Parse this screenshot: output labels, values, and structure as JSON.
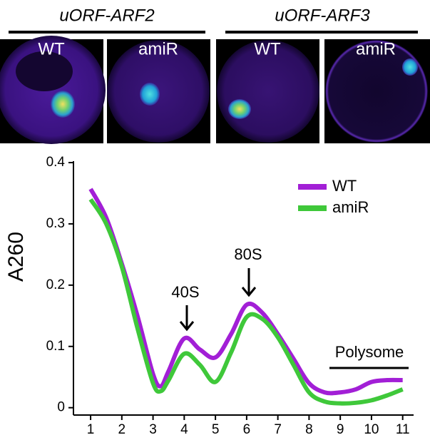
{
  "panels": {
    "groups": [
      "uORF-ARF2",
      "uORF-ARF3"
    ],
    "labels": [
      "WT",
      "amiR",
      "WT",
      "amiR"
    ]
  },
  "chart_data": {
    "type": "line",
    "ylabel": "A260",
    "x": [
      1,
      1.5,
      2,
      2.5,
      3,
      3.25,
      3.5,
      4,
      4.5,
      5,
      5.5,
      6,
      6.5,
      7,
      7.5,
      8,
      8.5,
      9,
      9.5,
      10,
      10.5,
      11
    ],
    "series": [
      {
        "name": "WT",
        "color": "#a21fd6",
        "values": [
          0.357,
          0.31,
          0.235,
          0.15,
          0.055,
          0.035,
          0.06,
          0.113,
          0.095,
          0.082,
          0.12,
          0.168,
          0.155,
          0.12,
          0.08,
          0.04,
          0.025,
          0.025,
          0.03,
          0.042,
          0.045,
          0.045
        ]
      },
      {
        "name": "amiR",
        "color": "#3fc83a",
        "values": [
          0.34,
          0.3,
          0.23,
          0.13,
          0.04,
          0.027,
          0.045,
          0.088,
          0.07,
          0.042,
          0.09,
          0.148,
          0.145,
          0.115,
          0.07,
          0.025,
          0.01,
          0.007,
          0.008,
          0.012,
          0.02,
          0.03
        ]
      }
    ],
    "xlim": [
      0.45,
      11.35
    ],
    "ylim": [
      -0.012,
      0.4
    ],
    "xticks": [
      1,
      2,
      3,
      4,
      5,
      6,
      7,
      8,
      9,
      10,
      11
    ],
    "yticks": [
      0,
      0.1,
      0.2,
      0.3,
      0.4
    ],
    "annotations": [
      "40S",
      "80S",
      "Polysome"
    ],
    "legend": "upper right"
  }
}
